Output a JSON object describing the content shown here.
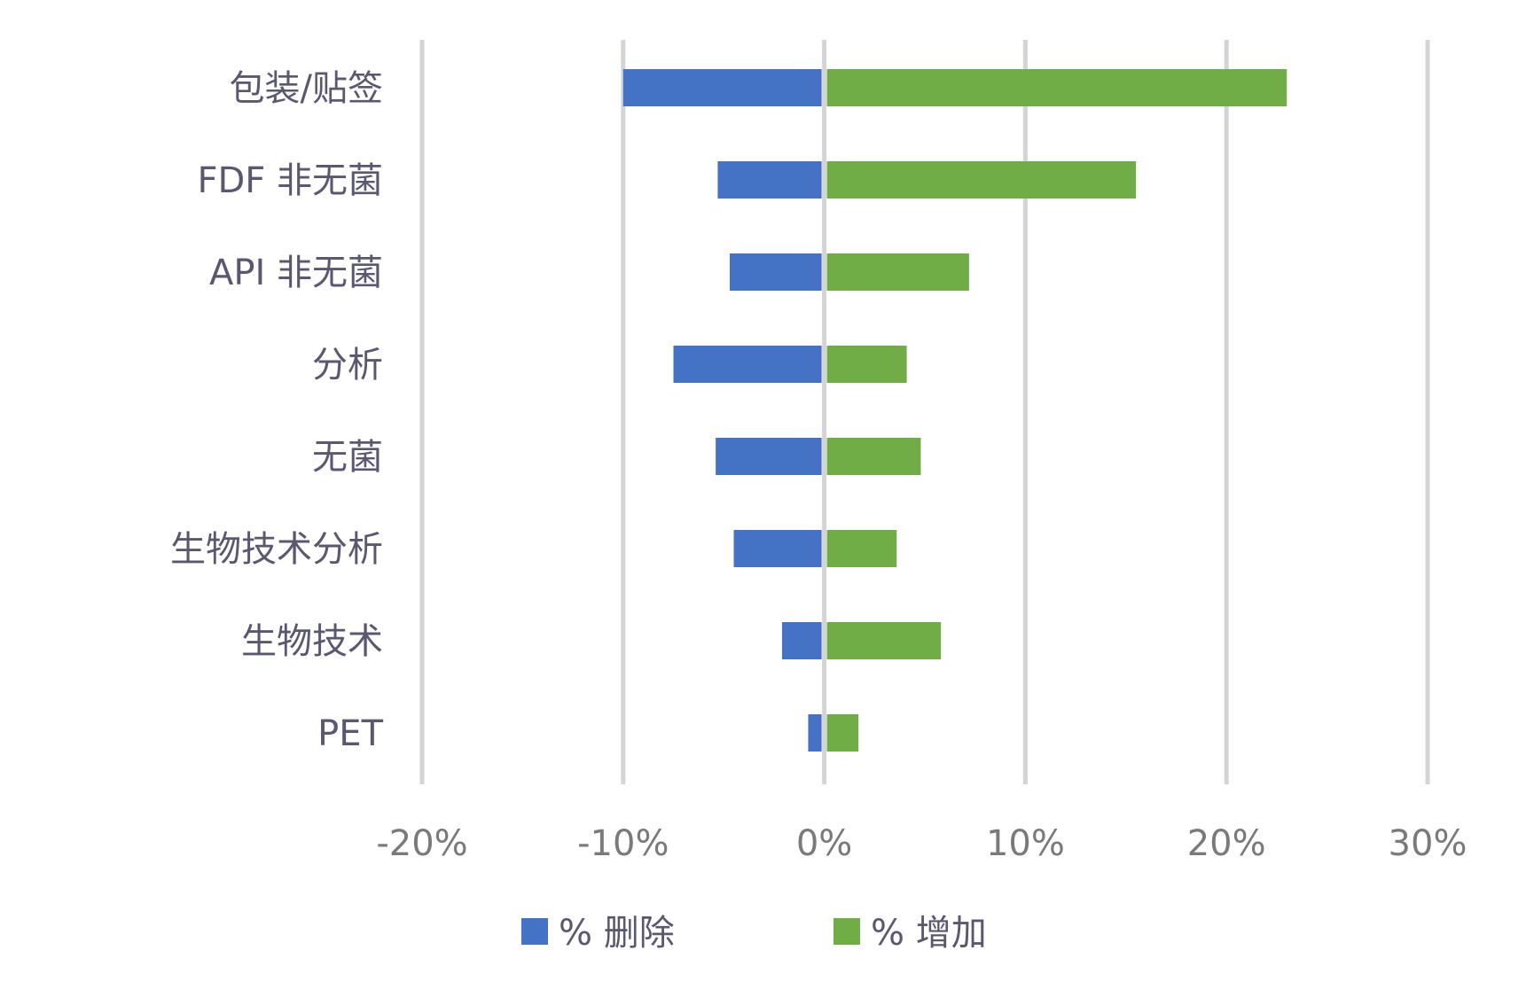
{
  "chart_data": {
    "type": "bar",
    "orientation": "horizontal",
    "stacked": "diverging",
    "categories": [
      "包装/贴签",
      "FDF 非无菌",
      "API 非无菌",
      "分析",
      "无菌",
      "生物技术分析",
      "生物技术",
      "PET"
    ],
    "series": [
      {
        "name": "% 删除",
        "color": "#4472c4",
        "values": [
          -10,
          -5.3,
          -4.7,
          -7.5,
          -5.4,
          -4.5,
          -2.1,
          -0.8
        ]
      },
      {
        "name": "% 增加",
        "color": "#70ad47",
        "values": [
          23,
          15.5,
          7.2,
          4.1,
          4.8,
          3.6,
          5.8,
          1.7
        ]
      }
    ],
    "xlim": [
      -20,
      30
    ],
    "xticks": [
      -20,
      -10,
      0,
      10,
      20,
      30
    ],
    "xtick_labels": [
      "-20%",
      "-10%",
      "0%",
      "10%",
      "20%",
      "30%"
    ],
    "grid": "vertical",
    "legend": "bottom"
  }
}
